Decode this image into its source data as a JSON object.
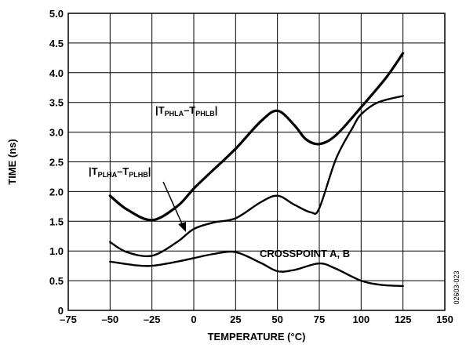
{
  "chart_data": {
    "type": "line",
    "title": "",
    "xlabel": "TEMPERATURE (°C)",
    "ylabel": "TIME (ns)",
    "xlim": [
      -75,
      150
    ],
    "ylim": [
      0,
      5
    ],
    "x_ticks": [
      -75,
      -50,
      -25,
      0,
      25,
      50,
      75,
      100,
      125,
      150
    ],
    "x_tick_labels": [
      "–75",
      "–50",
      "–25",
      "0",
      "25",
      "50",
      "75",
      "100",
      "125",
      "150"
    ],
    "y_ticks": [
      0,
      0.5,
      1.0,
      1.5,
      2.0,
      2.5,
      3.0,
      3.5,
      4.0,
      4.5,
      5.0
    ],
    "y_tick_labels": [
      "0",
      "0.5",
      "1.0",
      "1.5",
      "2.0",
      "2.5",
      "3.0",
      "3.5",
      "4.0",
      "4.5",
      "5.0"
    ],
    "grid": true,
    "legend": "none",
    "series": [
      {
        "label_parts": {
          "pre": "|T",
          "sub1": "PHLA",
          "mid": "–T",
          "sub2": "PHLB",
          "post": "|"
        },
        "stroke_weight": "thick",
        "points": [
          [
            -50,
            1.93
          ],
          [
            -40,
            1.7
          ],
          [
            -25,
            1.52
          ],
          [
            -10,
            1.75
          ],
          [
            0,
            2.05
          ],
          [
            10,
            2.32
          ],
          [
            25,
            2.72
          ],
          [
            40,
            3.18
          ],
          [
            50,
            3.36
          ],
          [
            60,
            3.12
          ],
          [
            67,
            2.88
          ],
          [
            75,
            2.8
          ],
          [
            85,
            2.95
          ],
          [
            100,
            3.42
          ],
          [
            115,
            3.92
          ],
          [
            125,
            4.33
          ]
        ]
      },
      {
        "label_parts": {
          "pre": "|T",
          "sub1": "PLHA",
          "mid": "–T",
          "sub2": "PLHB",
          "post": "|"
        },
        "stroke_weight": "medium",
        "points": [
          [
            -50,
            1.15
          ],
          [
            -40,
            0.98
          ],
          [
            -25,
            0.92
          ],
          [
            -10,
            1.15
          ],
          [
            0,
            1.37
          ],
          [
            12,
            1.48
          ],
          [
            25,
            1.55
          ],
          [
            40,
            1.82
          ],
          [
            50,
            1.93
          ],
          [
            60,
            1.78
          ],
          [
            70,
            1.65
          ],
          [
            75,
            1.72
          ],
          [
            85,
            2.55
          ],
          [
            95,
            3.08
          ],
          [
            100,
            3.3
          ],
          [
            110,
            3.5
          ],
          [
            125,
            3.61
          ]
        ]
      },
      {
        "name": "CROSSPOINT A, B",
        "stroke_weight": "medium",
        "points": [
          [
            -50,
            0.82
          ],
          [
            -35,
            0.76
          ],
          [
            -25,
            0.75
          ],
          [
            -10,
            0.82
          ],
          [
            0,
            0.88
          ],
          [
            12,
            0.95
          ],
          [
            25,
            0.98
          ],
          [
            40,
            0.8
          ],
          [
            50,
            0.66
          ],
          [
            60,
            0.68
          ],
          [
            75,
            0.79
          ],
          [
            85,
            0.7
          ],
          [
            100,
            0.5
          ],
          [
            112,
            0.43
          ],
          [
            125,
            0.41
          ]
        ]
      }
    ]
  },
  "figure_code": "02603-023"
}
